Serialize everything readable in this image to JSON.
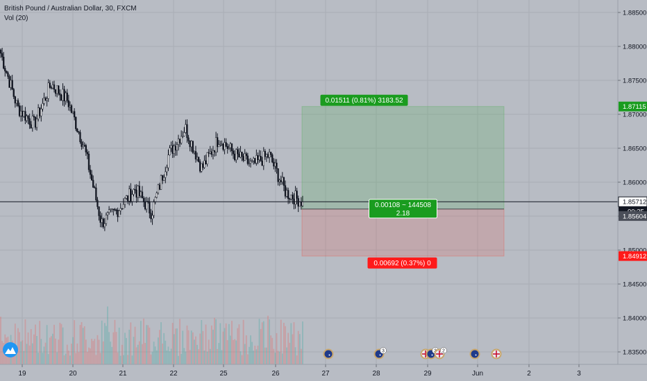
{
  "header": {
    "symbol_title": "British Pound / Australian Dollar, 30, FXCM",
    "indicator": "Vol (20)"
  },
  "colors": {
    "background": "#b8bcc4",
    "up": "#ffffff",
    "down": "#131722",
    "profit_zone": "rgba(76,175,80,0.22)",
    "loss_zone": "rgba(244,67,54,0.16)",
    "profit_label": "#1a9c1f",
    "loss_label": "#ff1a1a",
    "price_line": "#131722",
    "axis_text": "#131722",
    "logo": "#2196f3"
  },
  "price_axis": {
    "ticks": [
      "1.88500",
      "1.88000",
      "1.87500",
      "1.87000",
      "1.86500",
      "1.86000",
      "1.85500",
      "1.85000",
      "1.84500",
      "1.84000",
      "1.83500"
    ],
    "tags": [
      {
        "label": "1.87115",
        "kind": "target",
        "color": "#1a9c1f"
      },
      {
        "label": "1.85712",
        "kind": "last",
        "color": "#131722"
      },
      {
        "label": "00:25",
        "kind": "countdown",
        "color": "#131722"
      },
      {
        "label": "1.85604",
        "kind": "entry",
        "color": "#4a4e58"
      },
      {
        "label": "1.84912",
        "kind": "stop",
        "color": "#ff1a1a"
      }
    ]
  },
  "time_axis": {
    "ticks": [
      "19",
      "20",
      "21",
      "22",
      "25",
      "26",
      "27",
      "28",
      "29",
      "Jun",
      "2",
      "3"
    ]
  },
  "position": {
    "target_label": "0.01511 (0.81%) 3183.52",
    "entry_label_1": "0.00108 ~ 144508",
    "entry_label_2": "2.18",
    "stop_label": "0.00692 (0.37%) 0",
    "entry_price": 1.85604,
    "target_price": 1.87115,
    "stop_price": 1.84912
  },
  "events": [
    {
      "flag": "au",
      "badge": ""
    },
    {
      "flag": "au",
      "badge": "3"
    },
    {
      "flag": "uk",
      "badge": ""
    },
    {
      "flag": "au",
      "badge": "3"
    },
    {
      "flag": "uk",
      "badge": "2"
    },
    {
      "flag": "au",
      "badge": ""
    },
    {
      "flag": "uk",
      "badge": ""
    }
  ],
  "chart_data": {
    "type": "candlestick",
    "title": "British Pound / Australian Dollar, 30, FXCM",
    "ylim": [
      1.8325,
      1.8875
    ],
    "last_price": 1.85712,
    "anchors": [
      {
        "date": "19",
        "close": 1.879
      },
      {
        "date": "19",
        "close": 1.871
      },
      {
        "date": "19",
        "close": 1.8685
      },
      {
        "date": "20",
        "close": 1.8745
      },
      {
        "date": "20",
        "close": 1.872
      },
      {
        "date": "20",
        "close": 1.865
      },
      {
        "date": "21",
        "close": 1.854
      },
      {
        "date": "21",
        "close": 1.856
      },
      {
        "date": "21",
        "close": 1.859
      },
      {
        "date": "21",
        "close": 1.8555
      },
      {
        "date": "22",
        "close": 1.864
      },
      {
        "date": "22",
        "close": 1.868
      },
      {
        "date": "22",
        "close": 1.862
      },
      {
        "date": "25",
        "close": 1.8665
      },
      {
        "date": "25",
        "close": 1.864
      },
      {
        "date": "25",
        "close": 1.8625
      },
      {
        "date": "26",
        "close": 1.864
      },
      {
        "date": "26",
        "close": 1.8585
      },
      {
        "date": "26",
        "close": 1.8571
      }
    ]
  }
}
